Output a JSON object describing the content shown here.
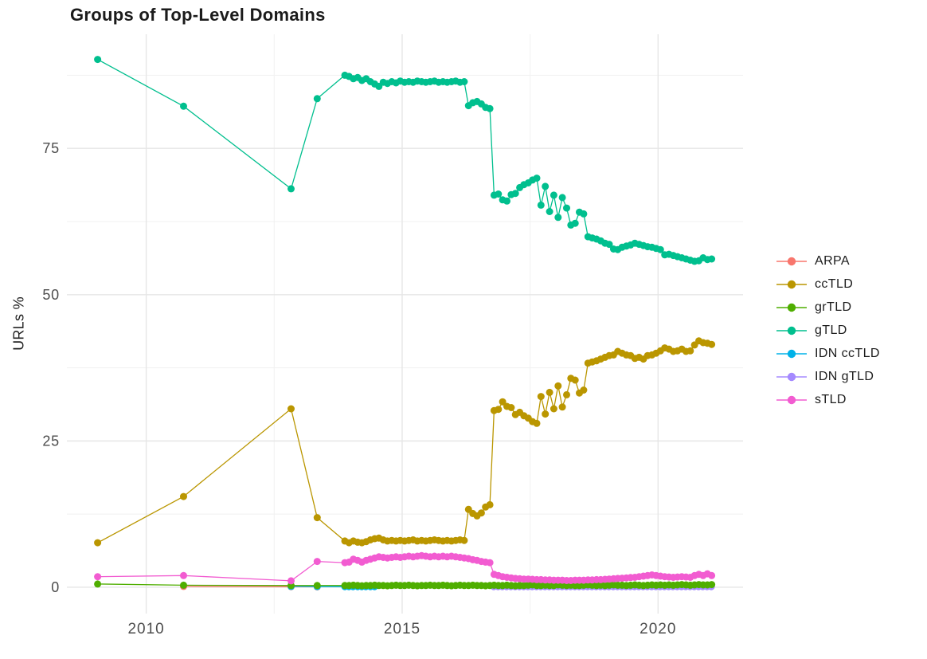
{
  "chart_data": {
    "type": "line",
    "title": "Groups of Top-Level Domains",
    "xlabel": "",
    "ylabel": "URLs %",
    "grid": true,
    "legend_position": "right",
    "marker_radius": 4.5,
    "x_range": [
      2008.45,
      2021.66
    ],
    "y_range": [
      -4.5,
      94.5
    ],
    "x_major_ticks": [
      2010,
      2015,
      2020
    ],
    "x_tick_labels": [
      "2010",
      "2015",
      "2020"
    ],
    "x_minor_ticks": [
      2012.5,
      2017.5
    ],
    "y_major_ticks": [
      0,
      25,
      50,
      75
    ],
    "y_tick_labels": [
      "0",
      "25",
      "50",
      "75"
    ],
    "y_minor_ticks": [
      12.5,
      37.5,
      62.5,
      87.5
    ],
    "draw_order": [
      "ARPA",
      "IDN ccTLD",
      "IDN gTLD",
      "ccTLD",
      "gTLD",
      "grTLD",
      "sTLD"
    ],
    "series": [
      {
        "name": "ARPA",
        "color": "#F8766D",
        "points": [
          [
            2010.73,
            0.15
          ],
          [
            2012.83,
            0.1
          ],
          [
            2013.34,
            0.08
          ]
        ]
      },
      {
        "name": "ccTLD",
        "color": "#BA9600",
        "points": [
          [
            2009.05,
            7.6
          ],
          [
            2010.73,
            15.5
          ],
          [
            2012.83,
            30.5
          ],
          [
            2013.34,
            11.9
          ]
        ],
        "dense": {
          "start": 2013.88,
          "step": 0.08333,
          "values": [
            7.9,
            7.6,
            7.9,
            7.7,
            7.6,
            7.8,
            8.1,
            8.3,
            8.4,
            8.1,
            7.9,
            8.0,
            7.9,
            8.0,
            7.9,
            8.0,
            8.1,
            7.9,
            8.0,
            7.9,
            8.0,
            8.1,
            8.0,
            7.9,
            8.0,
            7.9,
            8.0,
            8.1,
            8.0,
            13.3,
            12.6,
            12.2,
            12.7,
            13.7,
            14.1,
            30.2,
            30.4,
            31.7,
            30.9,
            30.7,
            29.5,
            29.9,
            29.3,
            28.9,
            28.3,
            28.0,
            32.6,
            29.6,
            33.3,
            30.5,
            34.4,
            30.8,
            32.9,
            35.7,
            35.4,
            33.2,
            33.7,
            38.3,
            38.5,
            38.7,
            39.0,
            39.3,
            39.6,
            39.7,
            40.3,
            40.0,
            39.7,
            39.6,
            39.1,
            39.3,
            39.0,
            39.6,
            39.7,
            40.0,
            40.4,
            40.9,
            40.7,
            40.3,
            40.4,
            40.7,
            40.3,
            40.4,
            41.4,
            42.1,
            41.8,
            41.7,
            41.5
          ]
        }
      },
      {
        "name": "grTLD",
        "color": "#4FAE00",
        "points": [
          [
            2009.05,
            0.55
          ],
          [
            2010.73,
            0.35
          ],
          [
            2012.83,
            0.3
          ],
          [
            2013.34,
            0.3
          ]
        ],
        "dense": {
          "start": 2013.88,
          "step": 0.08333,
          "values": [
            0.3,
            0.3,
            0.35,
            0.3,
            0.25,
            0.3,
            0.3,
            0.35,
            0.3,
            0.3,
            0.25,
            0.3,
            0.35,
            0.3,
            0.3,
            0.35,
            0.3,
            0.25,
            0.3,
            0.3,
            0.35,
            0.3,
            0.3,
            0.35,
            0.3,
            0.25,
            0.3,
            0.35,
            0.3,
            0.3,
            0.35,
            0.3,
            0.3,
            0.25,
            0.3,
            0.35,
            0.3,
            0.3,
            0.35,
            0.3,
            0.25,
            0.3,
            0.3,
            0.35,
            0.4,
            0.3,
            0.3,
            0.35,
            0.3,
            0.3,
            0.4,
            0.35,
            0.3,
            0.35,
            0.3,
            0.3,
            0.35,
            0.4,
            0.35,
            0.3,
            0.35,
            0.3,
            0.35,
            0.4,
            0.35,
            0.35,
            0.3,
            0.35,
            0.4,
            0.35,
            0.3,
            0.35,
            0.4,
            0.35,
            0.4,
            0.35,
            0.4,
            0.35,
            0.4,
            0.45,
            0.4,
            0.35,
            0.4,
            0.45,
            0.4,
            0.4,
            0.45
          ]
        }
      },
      {
        "name": "gTLD",
        "color": "#00BF8E",
        "points": [
          [
            2009.05,
            90.2
          ],
          [
            2010.73,
            82.2
          ],
          [
            2012.83,
            68.1
          ],
          [
            2013.34,
            83.5
          ]
        ],
        "dense": {
          "start": 2013.88,
          "step": 0.08333,
          "values": [
            87.5,
            87.3,
            86.9,
            87.1,
            86.6,
            86.9,
            86.4,
            86.0,
            85.6,
            86.3,
            86.1,
            86.4,
            86.2,
            86.5,
            86.3,
            86.4,
            86.3,
            86.5,
            86.4,
            86.3,
            86.4,
            86.5,
            86.3,
            86.4,
            86.3,
            86.4,
            86.5,
            86.3,
            86.4,
            82.3,
            82.8,
            83.0,
            82.6,
            82.0,
            81.8,
            67.0,
            67.2,
            66.2,
            66.0,
            67.1,
            67.3,
            68.3,
            68.8,
            69.1,
            69.6,
            69.9,
            65.3,
            68.5,
            64.2,
            67.0,
            63.2,
            66.6,
            64.8,
            61.9,
            62.2,
            64.1,
            63.8,
            59.9,
            59.7,
            59.5,
            59.2,
            58.8,
            58.6,
            57.8,
            57.7,
            58.1,
            58.3,
            58.5,
            58.8,
            58.6,
            58.4,
            58.2,
            58.1,
            57.9,
            57.7,
            56.8,
            56.9,
            56.7,
            56.5,
            56.3,
            56.1,
            55.9,
            55.7,
            55.8,
            56.3,
            56.0,
            56.1
          ]
        }
      },
      {
        "name": "IDN ccTLD",
        "color": "#00B2E8",
        "points": [
          [
            2012.83,
            0.15
          ],
          [
            2013.34,
            0.12
          ],
          [
            2013.88,
            0.1
          ],
          [
            2013.96,
            0.1
          ],
          [
            2014.04,
            0.1
          ],
          [
            2014.13,
            0.1
          ],
          [
            2014.21,
            0.1
          ],
          [
            2014.29,
            0.1
          ],
          [
            2014.38,
            0.1
          ],
          [
            2014.46,
            0.1
          ]
        ]
      },
      {
        "name": "IDN gTLD",
        "color": "#A58AFF",
        "dense": {
          "start": 2016.79,
          "step": 0.08333,
          "values": [
            0.1,
            0.1,
            0.1,
            0.1,
            0.1,
            0.1,
            0.1,
            0.1,
            0.1,
            0.1,
            0.1,
            0.1,
            0.1,
            0.1,
            0.1,
            0.1,
            0.1,
            0.1,
            0.1,
            0.1,
            0.1,
            0.1,
            0.1,
            0.1,
            0.1,
            0.1,
            0.1,
            0.1,
            0.1,
            0.1,
            0.1,
            0.1,
            0.1,
            0.1,
            0.1,
            0.1,
            0.1,
            0.1,
            0.1,
            0.1,
            0.1,
            0.1,
            0.1,
            0.1,
            0.1,
            0.1,
            0.1,
            0.1,
            0.1,
            0.1,
            0.1,
            0.1
          ]
        }
      },
      {
        "name": "sTLD",
        "color": "#F25CD1",
        "points": [
          [
            2009.05,
            1.8
          ],
          [
            2010.73,
            2.0
          ],
          [
            2012.83,
            1.1
          ],
          [
            2013.34,
            4.4
          ]
        ],
        "dense": {
          "start": 2013.88,
          "step": 0.08333,
          "values": [
            4.2,
            4.3,
            4.8,
            4.6,
            4.3,
            4.6,
            4.8,
            5.0,
            5.2,
            5.1,
            5.0,
            5.1,
            5.2,
            5.1,
            5.2,
            5.3,
            5.2,
            5.3,
            5.4,
            5.3,
            5.2,
            5.3,
            5.2,
            5.3,
            5.2,
            5.3,
            5.2,
            5.1,
            5.0,
            4.9,
            4.7,
            4.6,
            4.4,
            4.3,
            4.2,
            2.2,
            2.0,
            1.8,
            1.7,
            1.6,
            1.5,
            1.45,
            1.4,
            1.4,
            1.35,
            1.3,
            1.3,
            1.25,
            1.25,
            1.2,
            1.2,
            1.2,
            1.15,
            1.15,
            1.2,
            1.2,
            1.2,
            1.25,
            1.25,
            1.3,
            1.3,
            1.35,
            1.4,
            1.45,
            1.5,
            1.55,
            1.6,
            1.65,
            1.7,
            1.8,
            1.9,
            2.0,
            2.1,
            2.0,
            1.9,
            1.8,
            1.75,
            1.7,
            1.75,
            1.8,
            1.75,
            1.7,
            2.0,
            2.2,
            2.0,
            2.3,
            2.0
          ]
        }
      }
    ]
  },
  "colors": {
    "background": "#ffffff",
    "grid_major": "#e6e6e6",
    "grid_minor": "#f1f1f1",
    "tick_label": "#4d4d4d",
    "text": "#1c1c1c"
  }
}
